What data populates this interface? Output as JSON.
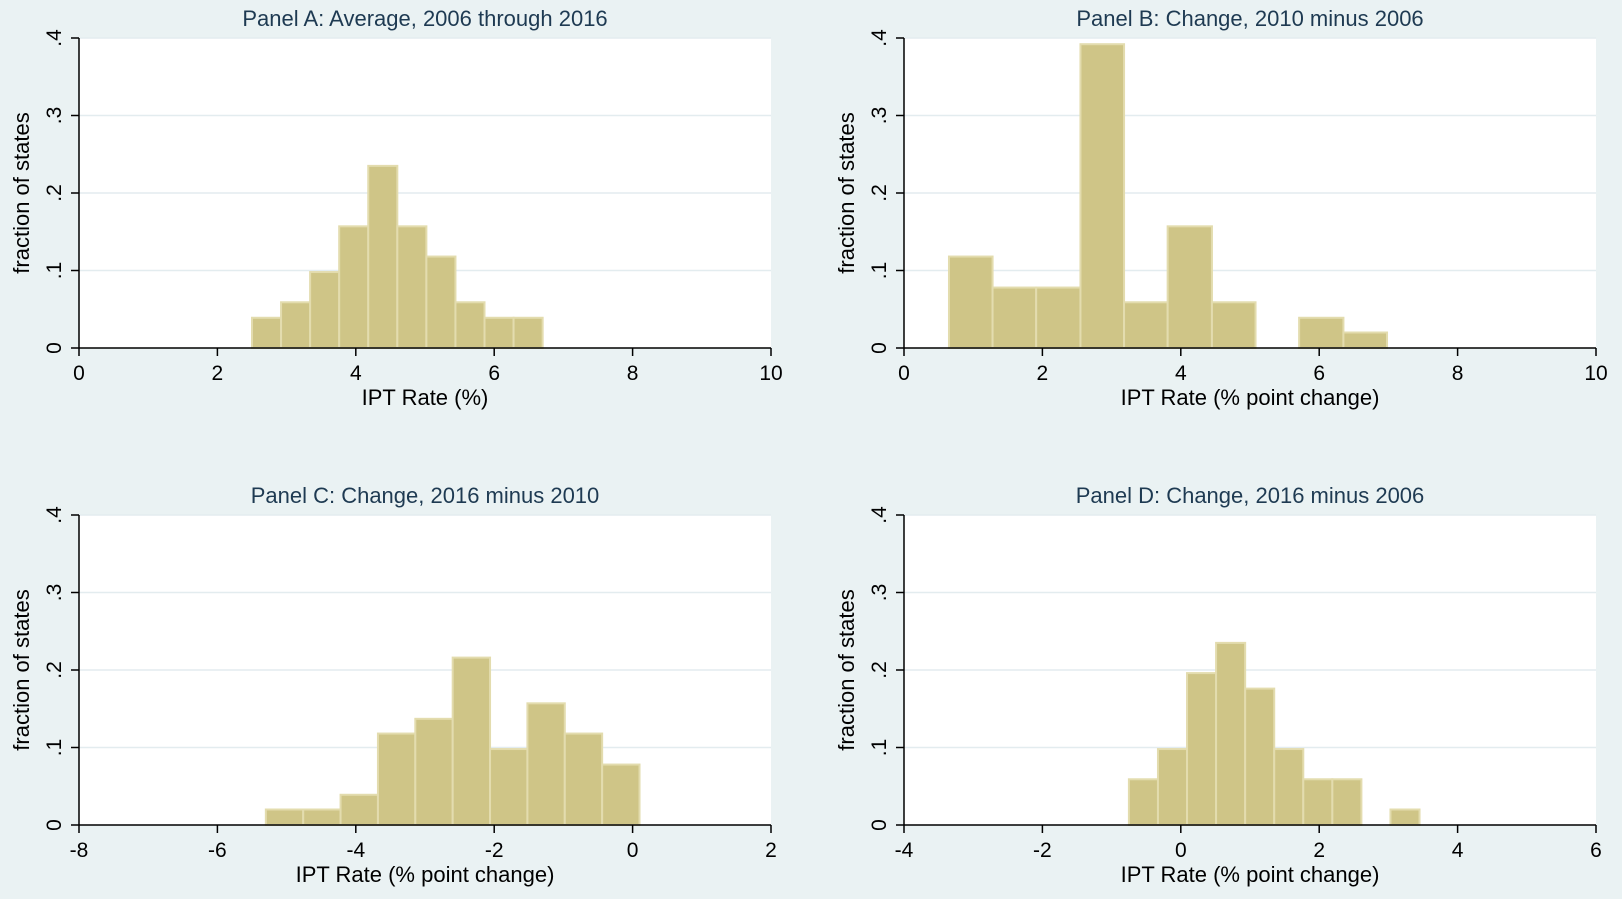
{
  "colors": {
    "background": "#eaf2f3",
    "plot_area": "#ffffff",
    "bar_fill": "#cfc587",
    "bar_edge": "#e3dcae",
    "gridline": "#e3ecef",
    "title": "#1e3a52"
  },
  "chart_data": [
    {
      "type": "bar",
      "title": "Panel A: Average, 2006 through 2016",
      "xlabel": "IPT Rate (%)",
      "ylabel": "fraction of states",
      "xlim": [
        0,
        10
      ],
      "ylim": [
        0,
        0.4
      ],
      "xticks": [
        0,
        2,
        4,
        6,
        8,
        10
      ],
      "xtick_labels": [
        "0",
        "2",
        "4",
        "6",
        "8",
        "10"
      ],
      "yticks": [
        0,
        0.1,
        0.2,
        0.3,
        0.4
      ],
      "ytick_labels": [
        "0",
        ".1",
        ".2",
        ".3",
        ".4"
      ],
      "grid": true,
      "bins": [
        {
          "x0": 2.5,
          "x1": 2.92,
          "value": 0.039
        },
        {
          "x0": 2.92,
          "x1": 3.34,
          "value": 0.059
        },
        {
          "x0": 3.34,
          "x1": 3.76,
          "value": 0.098
        },
        {
          "x0": 3.76,
          "x1": 4.18,
          "value": 0.157
        },
        {
          "x0": 4.18,
          "x1": 4.6,
          "value": 0.235
        },
        {
          "x0": 4.6,
          "x1": 5.02,
          "value": 0.157
        },
        {
          "x0": 5.02,
          "x1": 5.44,
          "value": 0.118
        },
        {
          "x0": 5.44,
          "x1": 5.86,
          "value": 0.059
        },
        {
          "x0": 5.86,
          "x1": 6.28,
          "value": 0.039
        },
        {
          "x0": 6.28,
          "x1": 6.7,
          "value": 0.039
        }
      ]
    },
    {
      "type": "bar",
      "title": "Panel B: Change, 2010 minus 2006",
      "xlabel": "IPT Rate (% point change)",
      "ylabel": "fraction of states",
      "xlim": [
        0,
        10
      ],
      "ylim": [
        0,
        0.4
      ],
      "xticks": [
        0,
        2,
        4,
        6,
        8,
        10
      ],
      "xtick_labels": [
        "0",
        "2",
        "4",
        "6",
        "8",
        "10"
      ],
      "yticks": [
        0,
        0.1,
        0.2,
        0.3,
        0.4
      ],
      "ytick_labels": [
        "0",
        ".1",
        ".2",
        ".3",
        ".4"
      ],
      "grid": true,
      "bins": [
        {
          "x0": 0.65,
          "x1": 1.28,
          "value": 0.118
        },
        {
          "x0": 1.28,
          "x1": 1.91,
          "value": 0.078
        },
        {
          "x0": 1.91,
          "x1": 2.55,
          "value": 0.078
        },
        {
          "x0": 2.55,
          "x1": 3.18,
          "value": 0.392
        },
        {
          "x0": 3.18,
          "x1": 3.81,
          "value": 0.059
        },
        {
          "x0": 3.81,
          "x1": 4.45,
          "value": 0.157
        },
        {
          "x0": 4.45,
          "x1": 5.08,
          "value": 0.059
        },
        {
          "x0": 5.08,
          "x1": 5.71,
          "value": 0
        },
        {
          "x0": 5.71,
          "x1": 6.35,
          "value": 0.039
        },
        {
          "x0": 6.35,
          "x1": 6.98,
          "value": 0.02
        }
      ]
    },
    {
      "type": "bar",
      "title": "Panel C: Change, 2016 minus 2010",
      "xlabel": "IPT Rate (% point change)",
      "ylabel": "fraction of states",
      "xlim": [
        -8,
        2
      ],
      "ylim": [
        0,
        0.4
      ],
      "xticks": [
        -8,
        -6,
        -4,
        -2,
        0,
        2
      ],
      "xtick_labels": [
        "-8",
        "-6",
        "-4",
        "-2",
        "0",
        "2"
      ],
      "yticks": [
        0,
        0.1,
        0.2,
        0.3,
        0.4
      ],
      "ytick_labels": [
        "0",
        ".1",
        ".2",
        ".3",
        ".4"
      ],
      "grid": true,
      "bins": [
        {
          "x0": -5.3,
          "x1": -4.76,
          "value": 0.02
        },
        {
          "x0": -4.76,
          "x1": -4.22,
          "value": 0.02
        },
        {
          "x0": -4.22,
          "x1": -3.68,
          "value": 0.039
        },
        {
          "x0": -3.68,
          "x1": -3.14,
          "value": 0.118
        },
        {
          "x0": -3.14,
          "x1": -2.6,
          "value": 0.137
        },
        {
          "x0": -2.6,
          "x1": -2.06,
          "value": 0.216
        },
        {
          "x0": -2.06,
          "x1": -1.52,
          "value": 0.098
        },
        {
          "x0": -1.52,
          "x1": -0.98,
          "value": 0.157
        },
        {
          "x0": -0.98,
          "x1": -0.44,
          "value": 0.118
        },
        {
          "x0": -0.44,
          "x1": 0.1,
          "value": 0.078
        }
      ]
    },
    {
      "type": "bar",
      "title": "Panel D: Change, 2016 minus 2006",
      "xlabel": "IPT Rate (% point change)",
      "ylabel": "fraction of states",
      "xlim": [
        -4,
        6
      ],
      "ylim": [
        0,
        0.4
      ],
      "xticks": [
        -4,
        -2,
        0,
        2,
        4,
        6
      ],
      "xtick_labels": [
        "-4",
        "-2",
        "0",
        "2",
        "4",
        "6"
      ],
      "yticks": [
        0,
        0.1,
        0.2,
        0.3,
        0.4
      ],
      "ytick_labels": [
        "0",
        ".1",
        ".2",
        ".3",
        ".4"
      ],
      "grid": true,
      "bins": [
        {
          "x0": -0.75,
          "x1": -0.33,
          "value": 0.059
        },
        {
          "x0": -0.33,
          "x1": 0.09,
          "value": 0.098
        },
        {
          "x0": 0.09,
          "x1": 0.51,
          "value": 0.196
        },
        {
          "x0": 0.51,
          "x1": 0.93,
          "value": 0.235
        },
        {
          "x0": 0.93,
          "x1": 1.35,
          "value": 0.176
        },
        {
          "x0": 1.35,
          "x1": 1.77,
          "value": 0.098
        },
        {
          "x0": 1.77,
          "x1": 2.19,
          "value": 0.059
        },
        {
          "x0": 2.19,
          "x1": 2.61,
          "value": 0.059
        },
        {
          "x0": 2.61,
          "x1": 3.03,
          "value": 0
        },
        {
          "x0": 3.03,
          "x1": 3.45,
          "value": 0.02
        }
      ]
    }
  ]
}
